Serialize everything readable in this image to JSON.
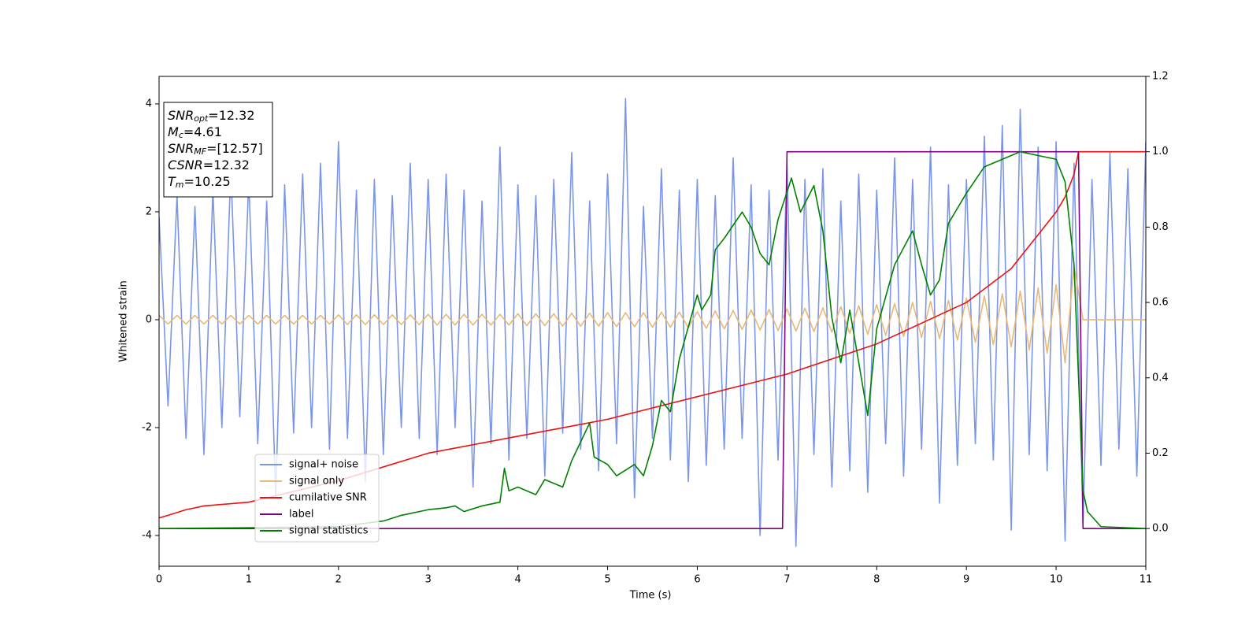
{
  "chart_data": {
    "type": "line",
    "xlabel": "Time (s)",
    "ylabel": "Whitened strain",
    "xlim": [
      0,
      11
    ],
    "xticks": [
      0,
      1,
      2,
      3,
      4,
      5,
      6,
      7,
      8,
      9,
      10,
      11
    ],
    "ylim": [
      -4.57,
      4.51
    ],
    "yticks": [
      -4,
      -2,
      0,
      2,
      4
    ],
    "y2lim": [
      -0.1,
      1.2
    ],
    "y2ticks": [
      {
        "value": 0,
        "label": "0.0"
      },
      {
        "value": 0.2,
        "label": "0.2"
      },
      {
        "value": 0.4,
        "label": "0.4"
      },
      {
        "value": 0.6,
        "label": "0.6"
      },
      {
        "value": 0.8,
        "label": "0.8"
      },
      {
        "value": 1,
        "label": "1.0"
      },
      {
        "value": 1.2,
        "label": "1.2"
      }
    ],
    "annotation_lines": [
      {
        "name": "SNR",
        "sub": "opt",
        "text": "=12.32"
      },
      {
        "name": "M",
        "sub": "c",
        "text": "=4.61"
      },
      {
        "name": "SNR",
        "sub": "MF",
        "text": "=[12.57]"
      },
      {
        "name": "CSNR",
        "text": "=12.32"
      },
      {
        "name": "T",
        "sub": "m",
        "text": "=10.25"
      }
    ],
    "x": [
      0,
      0.1,
      0.2,
      0.3,
      0.4,
      0.5,
      0.6,
      0.7,
      0.8,
      0.9,
      1,
      1.1,
      1.2,
      1.3,
      1.4,
      1.5,
      1.6,
      1.7,
      1.8,
      1.9,
      2,
      2.1,
      2.2,
      2.3,
      2.4,
      2.5,
      2.6,
      2.7,
      2.8,
      2.9,
      3,
      3.1,
      3.2,
      3.3,
      3.4,
      3.5,
      3.6,
      3.7,
      3.8,
      3.9,
      4,
      4.1,
      4.2,
      4.3,
      4.4,
      4.5,
      4.6,
      4.7,
      4.8,
      4.9,
      5,
      5.1,
      5.2,
      5.3,
      5.4,
      5.5,
      5.6,
      5.7,
      5.8,
      5.9,
      6,
      6.1,
      6.2,
      6.3,
      6.4,
      6.5,
      6.6,
      6.7,
      6.8,
      6.9,
      7,
      7.1,
      7.2,
      7.3,
      7.4,
      7.5,
      7.6,
      7.7,
      7.8,
      7.9,
      8,
      8.1,
      8.2,
      8.3,
      8.4,
      8.5,
      8.6,
      8.7,
      8.8,
      8.9,
      9,
      9.1,
      9.2,
      9.3,
      9.4,
      9.5,
      9.6,
      9.7,
      9.8,
      9.9,
      10,
      10.1,
      10.2,
      10.3,
      10.4,
      10.5,
      10.6,
      10.7,
      10.8,
      10.9,
      11
    ],
    "series": [
      {
        "name": "signal+ noise",
        "color": "#7b96e8",
        "values": [
          1.9,
          -1.6,
          2.3,
          -2.2,
          2.1,
          -2.5,
          2.4,
          -2.0,
          2.8,
          -1.8,
          2.6,
          -2.3,
          2.2,
          -3.3,
          2.5,
          -2.1,
          2.7,
          -2.0,
          2.9,
          -2.4,
          3.3,
          -2.2,
          2.4,
          -3.0,
          2.6,
          -2.5,
          2.3,
          -2.0,
          2.9,
          -2.2,
          2.6,
          -2.5,
          2.7,
          -2.0,
          2.4,
          -3.1,
          2.2,
          -2.3,
          3.2,
          -2.6,
          2.5,
          -2.2,
          2.3,
          -2.9,
          2.6,
          -2.1,
          3.1,
          -2.4,
          2.2,
          -2.8,
          2.7,
          -2.3,
          4.1,
          -3.3,
          2.1,
          -2.2,
          2.8,
          -2.6,
          2.4,
          -3.0,
          2.6,
          -2.7,
          2.3,
          -2.4,
          3.0,
          -2.2,
          2.5,
          -4.0,
          2.4,
          -2.6,
          2.9,
          -4.2,
          2.6,
          -2.5,
          2.8,
          -3.1,
          2.2,
          -2.8,
          2.7,
          -3.2,
          2.4,
          -2.3,
          3.0,
          -2.9,
          2.6,
          -2.4,
          3.2,
          -3.4,
          2.5,
          -2.7,
          2.6,
          -2.3,
          3.4,
          -2.6,
          3.6,
          -3.9,
          3.9,
          -2.5,
          3.2,
          -2.8,
          3.3,
          -4.1,
          2.9,
          -3.8,
          2.6,
          -2.7,
          3.1,
          -2.4,
          2.8,
          -2.9,
          3.3
        ]
      },
      {
        "name": "signal only",
        "color": "#e9b877",
        "values": [
          0.08,
          -0.08,
          0.08,
          -0.08,
          0.08,
          -0.08,
          0.08,
          -0.08,
          0.08,
          -0.08,
          0.08,
          -0.08,
          0.08,
          -0.08,
          0.08,
          -0.08,
          0.08,
          -0.08,
          0.08,
          -0.08,
          0.09,
          -0.09,
          0.09,
          -0.09,
          0.09,
          -0.09,
          0.09,
          -0.09,
          0.09,
          -0.09,
          0.1,
          -0.1,
          0.1,
          -0.1,
          0.1,
          -0.1,
          0.1,
          -0.1,
          0.1,
          -0.1,
          0.11,
          -0.11,
          0.11,
          -0.11,
          0.11,
          -0.12,
          0.12,
          -0.12,
          0.12,
          -0.12,
          0.13,
          -0.13,
          0.13,
          -0.13,
          0.13,
          -0.14,
          0.14,
          -0.14,
          0.14,
          -0.15,
          0.15,
          -0.16,
          0.16,
          -0.17,
          0.17,
          -0.18,
          0.18,
          -0.19,
          0.19,
          -0.2,
          0.2,
          -0.21,
          0.21,
          -0.22,
          0.22,
          -0.23,
          0.24,
          -0.25,
          0.26,
          -0.27,
          0.28,
          -0.29,
          0.3,
          -0.31,
          0.32,
          -0.33,
          0.34,
          -0.35,
          0.36,
          -0.38,
          0.4,
          -0.42,
          0.44,
          -0.46,
          0.48,
          -0.5,
          0.53,
          -0.56,
          0.59,
          -0.62,
          0.65,
          -0.8,
          1.0,
          0,
          0,
          0,
          0,
          0,
          0,
          0,
          0
        ]
      },
      {
        "name": "cumilative SNR",
        "color": "#ee1111",
        "axis": "y2",
        "x": [
          0,
          0.1,
          0.3,
          0.5,
          1,
          2,
          3,
          4,
          5,
          6,
          7,
          8,
          9,
          9.5,
          10,
          10.1,
          10.2,
          10.25,
          11
        ],
        "values": [
          0.028,
          0.035,
          0.05,
          0.06,
          0.07,
          0.127,
          0.2,
          0.245,
          0.29,
          0.35,
          0.41,
          0.49,
          0.6,
          0.69,
          0.84,
          0.88,
          0.94,
          1.0,
          1.0
        ]
      },
      {
        "name": "label",
        "color": "#800080",
        "axis": "y2",
        "x": [
          0,
          6.95,
          7.0,
          10.25,
          10.3,
          11
        ],
        "values": [
          0,
          0,
          1,
          1,
          0,
          0
        ]
      },
      {
        "name": "signal statistics",
        "color": "#008000",
        "axis": "y2",
        "x": [
          0,
          1,
          2,
          2.5,
          2.7,
          3.0,
          3.2,
          3.3,
          3.4,
          3.6,
          3.8,
          3.85,
          3.9,
          4.0,
          4.2,
          4.3,
          4.5,
          4.6,
          4.8,
          4.85,
          5.0,
          5.1,
          5.3,
          5.4,
          5.5,
          5.6,
          5.7,
          5.8,
          6.0,
          6.05,
          6.15,
          6.2,
          6.3,
          6.5,
          6.6,
          6.7,
          6.8,
          6.9,
          7.05,
          7.15,
          7.3,
          7.4,
          7.5,
          7.6,
          7.7,
          7.9,
          8.0,
          8.2,
          8.4,
          8.5,
          8.6,
          8.7,
          8.8,
          9.0,
          9.2,
          9.4,
          9.6,
          9.8,
          10.0,
          10.1,
          10.2,
          10.3,
          10.35,
          10.5,
          11
        ],
        "values": [
          0,
          0.002,
          0.005,
          0.02,
          0.035,
          0.05,
          0.055,
          0.06,
          0.045,
          0.06,
          0.07,
          0.16,
          0.1,
          0.11,
          0.09,
          0.13,
          0.11,
          0.18,
          0.28,
          0.19,
          0.17,
          0.14,
          0.17,
          0.14,
          0.22,
          0.34,
          0.31,
          0.45,
          0.62,
          0.58,
          0.62,
          0.74,
          0.77,
          0.84,
          0.8,
          0.73,
          0.7,
          0.82,
          0.93,
          0.84,
          0.91,
          0.79,
          0.56,
          0.44,
          0.58,
          0.3,
          0.53,
          0.7,
          0.79,
          0.7,
          0.62,
          0.66,
          0.81,
          0.89,
          0.96,
          0.98,
          1.0,
          0.99,
          0.98,
          0.92,
          0.7,
          0.1,
          0.045,
          0.005,
          0
        ]
      }
    ]
  }
}
